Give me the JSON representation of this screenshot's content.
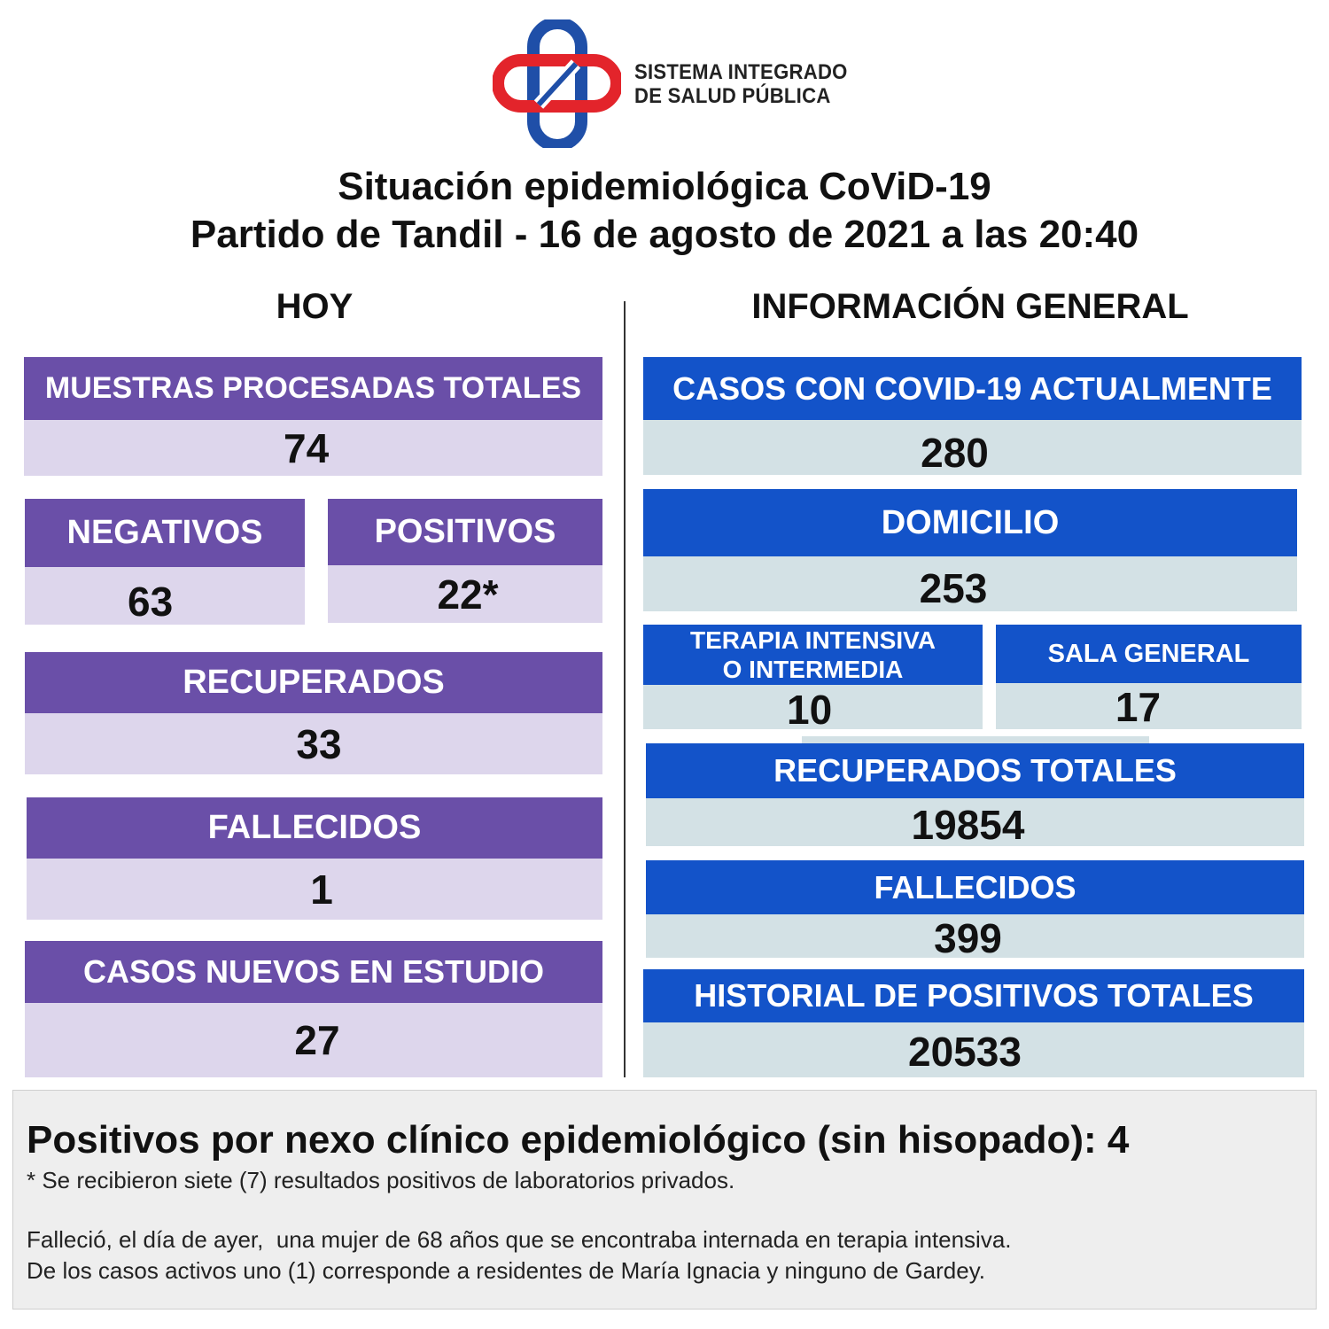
{
  "logo": {
    "line1": "SISTEMA INTEGRADO",
    "line2": "DE SALUD PÚBLICA",
    "colors": {
      "red": "#e3242b",
      "blue": "#1f4fa8"
    }
  },
  "title": {
    "line1": "Situación epidemiológica CoViD-19",
    "line2": "Partido de Tandil - 16 de agosto de 2021 a las 20:40"
  },
  "hoy": {
    "heading": "HOY",
    "muestras": {
      "label": "MUESTRAS PROCESADAS TOTALES",
      "value": "74"
    },
    "negativos": {
      "label": "NEGATIVOS",
      "value": "63"
    },
    "positivos": {
      "label": "POSITIVOS",
      "value": "22*"
    },
    "recuperados": {
      "label": "RECUPERADOS",
      "value": "33"
    },
    "fallecidos": {
      "label": "FALLECIDOS",
      "value": "1"
    },
    "en_estudio": {
      "label": "CASOS NUEVOS EN ESTUDIO",
      "value": "27"
    }
  },
  "general": {
    "heading": "INFORMACIÓN GENERAL",
    "activos": {
      "label": "CASOS CON COVID-19 ACTUALMENTE",
      "value": "280"
    },
    "domicilio": {
      "label": "DOMICILIO",
      "value": "253"
    },
    "terapia": {
      "label_line1": "TERAPIA INTENSIVA",
      "label_line2": "O INTERMEDIA",
      "value": "10"
    },
    "sala": {
      "label": "SALA GENERAL",
      "value": "17"
    },
    "recuperados_totales": {
      "label": "RECUPERADOS TOTALES",
      "value": "19854"
    },
    "fallecidos": {
      "label": "FALLECIDOS",
      "value": "399"
    },
    "historial": {
      "label": "HISTORIAL DE POSITIVOS TOTALES",
      "value": "20533"
    }
  },
  "footer": {
    "main": "Positivos por nexo clínico epidemiológico (sin hisopado): 4",
    "note": "* Se recibieron siete (7) resultados positivos de laboratorios privados.",
    "line1": "Falleció, el día de ayer,  una mujer de 68 años que se encontraba internada en terapia intensiva.",
    "line2": "De los casos activos uno (1) corresponde a residentes de María Ignacia y ninguno de Gardey."
  },
  "colors": {
    "purple_header": "#6a4fa8",
    "purple_value": "#ddd6ec",
    "blue_header": "#1353c9",
    "blue_value": "#d3e1e5"
  }
}
